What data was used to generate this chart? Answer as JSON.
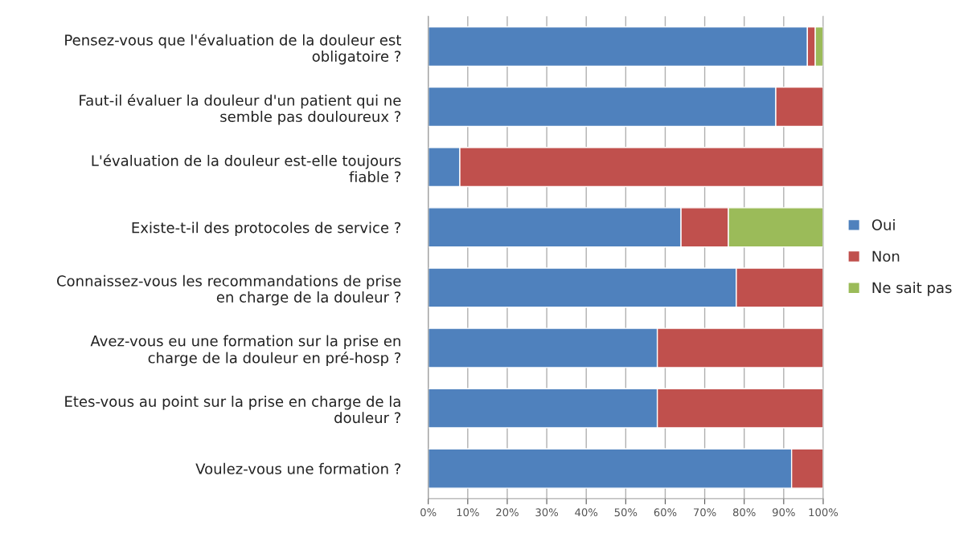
{
  "chart_data": {
    "type": "bar",
    "orientation": "horizontal",
    "stacked": true,
    "categories": [
      "Pensez-vous que l'évaluation de la douleur est\nobligatoire ?",
      "Faut-il évaluer la douleur d'un patient qui ne\nsemble pas douloureux ?",
      "L'évaluation de la douleur est-elle toujours\nfiable ?",
      "Existe-t-il des protocoles de service ?",
      "Connaissez-vous les recommandations de prise\nen charge de la douleur ?",
      "Avez-vous eu une formation sur la prise en\ncharge de la douleur en pré-hosp ?",
      "Etes-vous au point sur la prise en charge de la\ndouleur ?",
      "Voulez-vous une formation ?"
    ],
    "series": [
      {
        "name": "Oui",
        "color": "#4f81bd",
        "values": [
          96,
          88,
          8,
          64,
          78,
          58,
          58,
          92
        ]
      },
      {
        "name": "Non",
        "color": "#c0504d",
        "values": [
          2,
          12,
          92,
          12,
          22,
          42,
          42,
          8
        ]
      },
      {
        "name": "Ne sait pas",
        "color": "#9bbb59",
        "values": [
          2,
          null,
          null,
          24,
          null,
          null,
          null,
          null
        ]
      }
    ],
    "xlim": [
      0,
      100
    ],
    "xticks": [
      {
        "value": 0,
        "label": "0%"
      },
      {
        "value": 10,
        "label": "10%"
      },
      {
        "value": 20,
        "label": "20%"
      },
      {
        "value": 30,
        "label": "30%"
      },
      {
        "value": 40,
        "label": "40%"
      },
      {
        "value": 50,
        "label": "50%"
      },
      {
        "value": 60,
        "label": "60%"
      },
      {
        "value": 70,
        "label": "70%"
      },
      {
        "value": 80,
        "label": "80%"
      },
      {
        "value": 90,
        "label": "90%"
      },
      {
        "value": 100,
        "label": "100%"
      }
    ],
    "grid": "x",
    "legend": "right"
  }
}
